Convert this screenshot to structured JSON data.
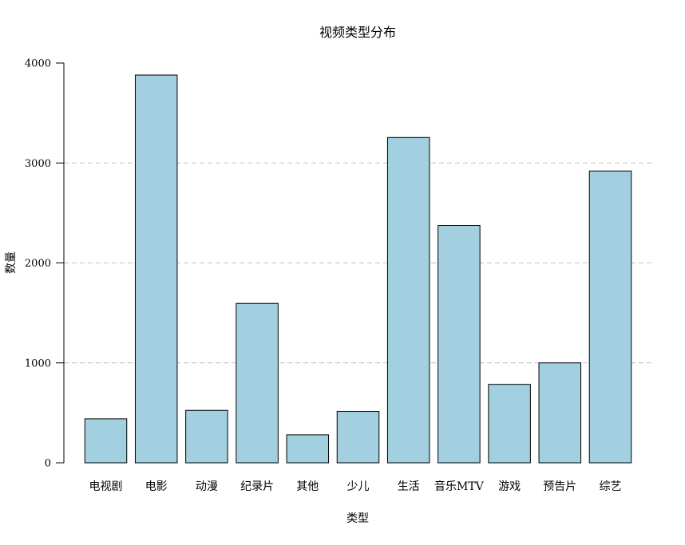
{
  "chart_data": {
    "type": "bar",
    "title": "视频类型分布",
    "xlabel": "类型",
    "ylabel": "数量",
    "categories": [
      "电视剧",
      "电影",
      "动漫",
      "纪录片",
      "其他",
      "少儿",
      "生活",
      "音乐MTV",
      "游戏",
      "预告片",
      "综艺"
    ],
    "values": [
      440,
      3880,
      525,
      1595,
      280,
      515,
      3255,
      2375,
      785,
      1000,
      2920
    ],
    "ylim": [
      0,
      4000
    ],
    "yticks": [
      0,
      1000,
      2000,
      3000,
      4000
    ],
    "grid": "horizontal dashed at 1000, 2000, 3000",
    "legend": "none",
    "colors": {
      "bar_fill": "#a2d0e0",
      "bar_stroke": "#000000",
      "grid": "#bfbfbf"
    }
  }
}
